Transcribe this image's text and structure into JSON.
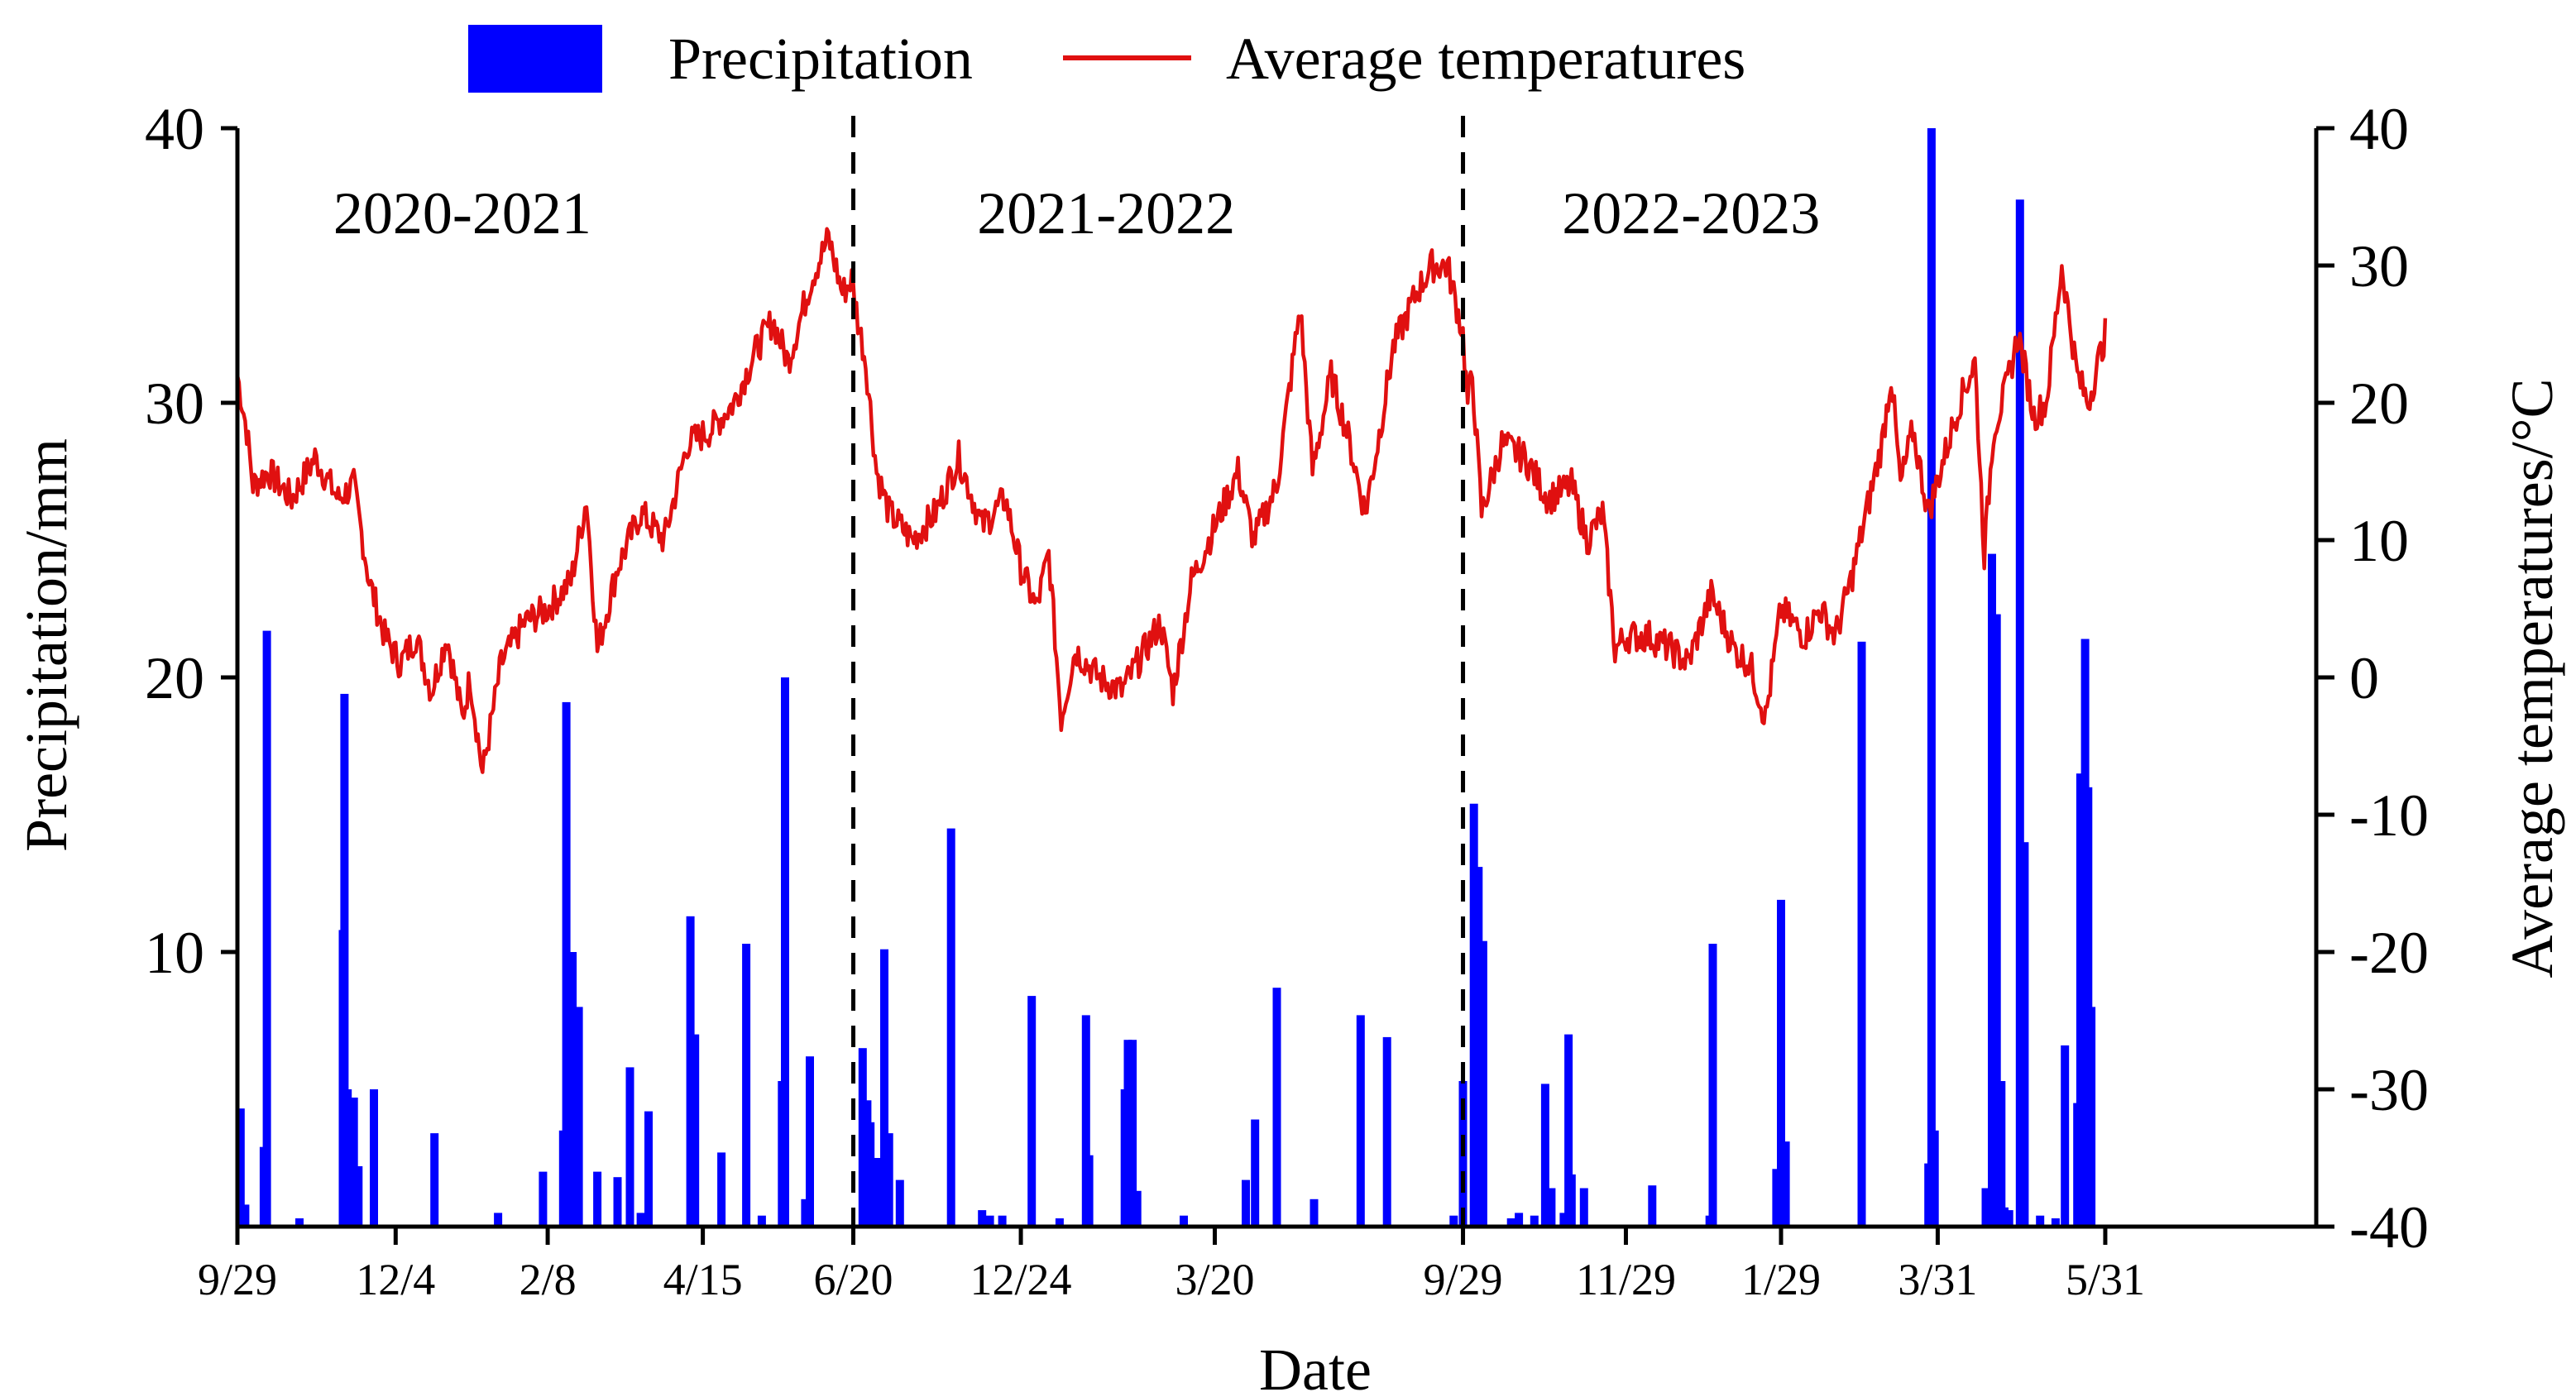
{
  "chart_data": {
    "type": "bar+line",
    "legend": [
      {
        "name": "Precipitation",
        "type": "bar",
        "color": "#0000ff"
      },
      {
        "name": "Average temperatures",
        "type": "line",
        "color": "#e01010"
      }
    ],
    "legend_position": "top-center",
    "xlabel": "Date",
    "ylabel_left": "Precipitation/mm",
    "ylabel_right": "Average temperatures/°C",
    "ylim_left": [
      0,
      40
    ],
    "ylim_right": [
      -40,
      40
    ],
    "yticks_left": [
      10,
      20,
      30,
      40
    ],
    "yticks_left_labels": [
      "10",
      "20",
      "30",
      "40"
    ],
    "yticks_right": [
      -40,
      -30,
      -20,
      -10,
      0,
      10,
      20,
      30,
      40
    ],
    "yticks_right_labels": [
      "-40",
      "-30",
      "-20",
      "-10",
      "0",
      "10",
      "20",
      "30",
      "40"
    ],
    "xlim_days": [
      0,
      1340
    ],
    "xticks": [
      {
        "day": 0,
        "label": "9/29"
      },
      {
        "day": 102,
        "label": "12/4"
      },
      {
        "day": 200,
        "label": "2/8"
      },
      {
        "day": 300,
        "label": "4/15"
      },
      {
        "day": 397,
        "label": "6/20"
      },
      {
        "day": 505,
        "label": "12/24"
      },
      {
        "day": 630,
        "label": "3/20"
      },
      {
        "day": 790,
        "label": "9/29"
      },
      {
        "day": 895,
        "label": "11/29"
      },
      {
        "day": 995,
        "label": "1/29"
      },
      {
        "day": 1096,
        "label": "3/31"
      },
      {
        "day": 1204,
        "label": "5/31"
      }
    ],
    "season_dividers_days": [
      397,
      790
    ],
    "season_labels": [
      {
        "label": "2020-2021",
        "center_day": 145
      },
      {
        "label": "2021-2022",
        "center_day": 560
      },
      {
        "label": "2022-2023",
        "center_day": 937
      }
    ],
    "temperature_anchors": [
      [
        0,
        22
      ],
      [
        6,
        18
      ],
      [
        10,
        14
      ],
      [
        20,
        15
      ],
      [
        35,
        13
      ],
      [
        50,
        16
      ],
      [
        65,
        13
      ],
      [
        75,
        14
      ],
      [
        85,
        7
      ],
      [
        95,
        3
      ],
      [
        105,
        1
      ],
      [
        115,
        3
      ],
      [
        125,
        -1
      ],
      [
        135,
        3
      ],
      [
        145,
        -3
      ],
      [
        150,
        0
      ],
      [
        158,
        -7
      ],
      [
        170,
        1
      ],
      [
        185,
        4
      ],
      [
        200,
        5
      ],
      [
        215,
        7
      ],
      [
        225,
        13
      ],
      [
        232,
        2
      ],
      [
        245,
        8
      ],
      [
        260,
        12
      ],
      [
        275,
        10
      ],
      [
        290,
        17
      ],
      [
        305,
        18
      ],
      [
        320,
        20
      ],
      [
        335,
        24
      ],
      [
        345,
        26
      ],
      [
        355,
        23
      ],
      [
        370,
        29
      ],
      [
        381,
        32
      ],
      [
        390,
        28
      ],
      [
        396,
        29
      ],
      [
        400,
        26
      ],
      [
        405,
        23
      ],
      [
        412,
        15
      ],
      [
        420,
        12
      ],
      [
        435,
        10
      ],
      [
        450,
        12
      ],
      [
        465,
        16
      ],
      [
        480,
        11
      ],
      [
        495,
        13
      ],
      [
        505,
        8
      ],
      [
        515,
        5
      ],
      [
        523,
        9
      ],
      [
        531,
        -3
      ],
      [
        540,
        2
      ],
      [
        555,
        0
      ],
      [
        570,
        -1
      ],
      [
        585,
        2
      ],
      [
        595,
        4
      ],
      [
        603,
        -1
      ],
      [
        615,
        7
      ],
      [
        630,
        11
      ],
      [
        645,
        15
      ],
      [
        655,
        10
      ],
      [
        670,
        14
      ],
      [
        685,
        27
      ],
      [
        693,
        15
      ],
      [
        705,
        22
      ],
      [
        715,
        18
      ],
      [
        727,
        12
      ],
      [
        735,
        17
      ],
      [
        745,
        24
      ],
      [
        760,
        28
      ],
      [
        770,
        30
      ],
      [
        780,
        30
      ],
      [
        790,
        25
      ],
      [
        793,
        20
      ],
      [
        796,
        22
      ],
      [
        802,
        12
      ],
      [
        815,
        17
      ],
      [
        830,
        16
      ],
      [
        845,
        13
      ],
      [
        860,
        14
      ],
      [
        870,
        10
      ],
      [
        880,
        12
      ],
      [
        888,
        2
      ],
      [
        895,
        3
      ],
      [
        910,
        3
      ],
      [
        925,
        2
      ],
      [
        935,
        1
      ],
      [
        950,
        6
      ],
      [
        965,
        2
      ],
      [
        975,
        1
      ],
      [
        985,
        -3
      ],
      [
        995,
        5
      ],
      [
        1010,
        3
      ],
      [
        1020,
        5
      ],
      [
        1030,
        3
      ],
      [
        1040,
        7
      ],
      [
        1050,
        12
      ],
      [
        1060,
        17
      ],
      [
        1066,
        22
      ],
      [
        1072,
        14
      ],
      [
        1080,
        18
      ],
      [
        1090,
        12
      ],
      [
        1100,
        16
      ],
      [
        1110,
        20
      ],
      [
        1120,
        23
      ],
      [
        1126,
        9
      ],
      [
        1132,
        18
      ],
      [
        1140,
        21
      ],
      [
        1148,
        25
      ],
      [
        1158,
        19
      ],
      [
        1166,
        20
      ],
      [
        1176,
        30
      ],
      [
        1186,
        22
      ],
      [
        1193,
        20
      ],
      [
        1204,
        25
      ]
    ],
    "precipitation": [
      [
        2,
        4.3
      ],
      [
        5,
        0.8
      ],
      [
        17,
        2.9
      ],
      [
        19,
        21.7
      ],
      [
        40,
        0.3
      ],
      [
        68,
        10.8
      ],
      [
        69,
        19.4
      ],
      [
        71,
        5.0
      ],
      [
        75,
        4.7
      ],
      [
        78,
        2.2
      ],
      [
        88,
        5.0
      ],
      [
        127,
        3.4
      ],
      [
        168,
        0.5
      ],
      [
        197,
        2.0
      ],
      [
        210,
        3.5
      ],
      [
        212,
        19.1
      ],
      [
        216,
        10.0
      ],
      [
        220,
        8.0
      ],
      [
        232,
        2.0
      ],
      [
        245,
        1.8
      ],
      [
        253,
        5.8
      ],
      [
        260,
        0.5
      ],
      [
        265,
        4.2
      ],
      [
        292,
        11.3
      ],
      [
        295,
        7.0
      ],
      [
        312,
        2.7
      ],
      [
        328,
        10.3
      ],
      [
        338,
        0.4
      ],
      [
        351,
        5.3
      ],
      [
        353,
        20.0
      ],
      [
        366,
        1.0
      ],
      [
        369,
        6.2
      ],
      [
        403,
        6.5
      ],
      [
        406,
        4.6
      ],
      [
        408,
        3.8
      ],
      [
        410,
        2.5
      ],
      [
        414,
        2.5
      ],
      [
        417,
        10.1
      ],
      [
        420,
        3.4
      ],
      [
        427,
        1.7
      ],
      [
        460,
        14.5
      ],
      [
        480,
        0.6
      ],
      [
        485,
        0.4
      ],
      [
        493,
        0.4
      ],
      [
        512,
        8.4
      ],
      [
        530,
        0.3
      ],
      [
        547,
        7.7
      ],
      [
        549,
        2.6
      ],
      [
        572,
        5.0
      ],
      [
        574,
        6.8
      ],
      [
        577,
        6.8
      ],
      [
        580,
        1.3
      ],
      [
        610,
        0.4
      ],
      [
        650,
        1.7
      ],
      [
        656,
        3.9
      ],
      [
        670,
        8.7
      ],
      [
        694,
        1.0
      ],
      [
        724,
        7.7
      ],
      [
        741,
        6.9
      ],
      [
        784,
        0.4
      ],
      [
        790,
        5.3
      ],
      [
        797,
        15.4
      ],
      [
        800,
        13.1
      ],
      [
        803,
        10.4
      ],
      [
        821,
        0.3
      ],
      [
        826,
        0.5
      ],
      [
        836,
        0.4
      ],
      [
        843,
        5.2
      ],
      [
        847,
        1.4
      ],
      [
        855,
        0.5
      ],
      [
        858,
        7.0
      ],
      [
        860,
        1.9
      ],
      [
        868,
        1.4
      ],
      [
        912,
        1.5
      ],
      [
        949,
        0.4
      ],
      [
        951,
        10.3
      ],
      [
        992,
        2.1
      ],
      [
        995,
        11.9
      ],
      [
        998,
        3.1
      ],
      [
        1047,
        21.3
      ],
      [
        1090,
        2.3
      ],
      [
        1092,
        40.0
      ],
      [
        1094,
        3.5
      ],
      [
        1127,
        1.4
      ],
      [
        1131,
        24.5
      ],
      [
        1134,
        22.3
      ],
      [
        1137,
        5.3
      ],
      [
        1139,
        0.7
      ],
      [
        1142,
        0.6
      ],
      [
        1149,
        37.4
      ],
      [
        1152,
        14.0
      ],
      [
        1162,
        0.4
      ],
      [
        1172,
        0.3
      ],
      [
        1178,
        6.6
      ],
      [
        1186,
        4.5
      ],
      [
        1188,
        16.5
      ],
      [
        1191,
        21.4
      ],
      [
        1193,
        16.0
      ],
      [
        1195,
        8.0
      ]
    ]
  }
}
